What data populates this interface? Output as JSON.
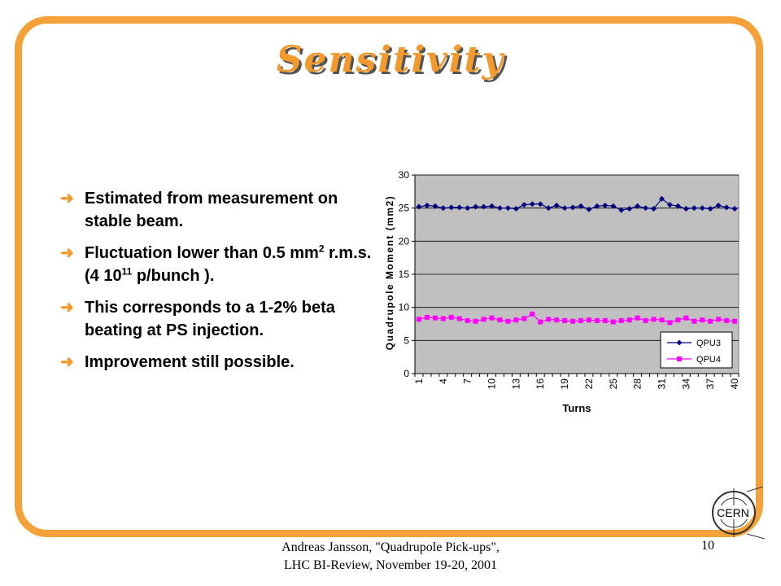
{
  "slide": {
    "title": "Sensitivity",
    "bullets": {
      "b1": {
        "text": "Estimated from measurement on stable beam."
      },
      "b2": {
        "pre": "Fluctuation lower than 0.5 mm",
        "sup1": "2",
        "mid": " r.m.s. (4 10",
        "sup2": "11",
        "post": " p/bunch )."
      },
      "b3": {
        "text": "This corresponds to a 1-2% beta beating at PS injection."
      },
      "b4": {
        "text": "Improvement still possible."
      }
    },
    "footer": {
      "line1": "Andreas Jansson, \"Quadrupole Pick-ups\",",
      "line2": "LHC BI-Review, November 19-20, 2001"
    },
    "page_number": "10",
    "logo_text": "CERN"
  },
  "colors": {
    "frame": "#f4a13a",
    "title": "#f29a2e",
    "arrow": "#f29a2e",
    "plot_bg": "#c0c0c0",
    "qpu3": "#000080",
    "qpu4": "#ff00ff"
  },
  "chart_data": {
    "type": "line",
    "xlabel": "Turns",
    "ylabel": "Quadrupole Moment (mm2)",
    "ylim": [
      0,
      30
    ],
    "yticks": [
      0,
      5,
      10,
      15,
      20,
      25,
      30
    ],
    "x": [
      1,
      2,
      3,
      4,
      5,
      6,
      7,
      8,
      9,
      10,
      11,
      12,
      13,
      14,
      15,
      16,
      17,
      18,
      19,
      20,
      21,
      22,
      23,
      24,
      25,
      26,
      27,
      28,
      29,
      30,
      31,
      32,
      33,
      34,
      35,
      36,
      37,
      38,
      39,
      40
    ],
    "xticks": [
      1,
      4,
      7,
      10,
      13,
      16,
      19,
      22,
      25,
      28,
      31,
      34,
      37,
      40
    ],
    "grid": "horizontal",
    "legend_position": "bottom-right",
    "series": [
      {
        "name": "QPU3",
        "marker": "diamond",
        "values": [
          25.2,
          25.4,
          25.3,
          25.0,
          25.1,
          25.1,
          25.0,
          25.2,
          25.2,
          25.3,
          25.0,
          25.0,
          24.9,
          25.5,
          25.6,
          25.6,
          25.0,
          25.4,
          25.0,
          25.1,
          25.3,
          24.8,
          25.3,
          25.4,
          25.3,
          24.7,
          24.9,
          25.3,
          25.0,
          24.9,
          26.4,
          25.5,
          25.3,
          24.9,
          25.0,
          25.0,
          24.9,
          25.4,
          25.1,
          24.9
        ]
      },
      {
        "name": "QPU4",
        "marker": "square",
        "values": [
          8.2,
          8.5,
          8.4,
          8.3,
          8.5,
          8.3,
          8.0,
          7.9,
          8.2,
          8.4,
          8.1,
          7.9,
          8.1,
          8.3,
          9.0,
          7.8,
          8.2,
          8.1,
          8.0,
          7.9,
          8.0,
          8.1,
          8.0,
          8.0,
          7.8,
          8.0,
          8.1,
          8.4,
          8.0,
          8.2,
          8.1,
          7.7,
          8.1,
          8.4,
          7.9,
          8.1,
          7.9,
          8.2,
          8.0,
          7.9
        ]
      }
    ]
  }
}
